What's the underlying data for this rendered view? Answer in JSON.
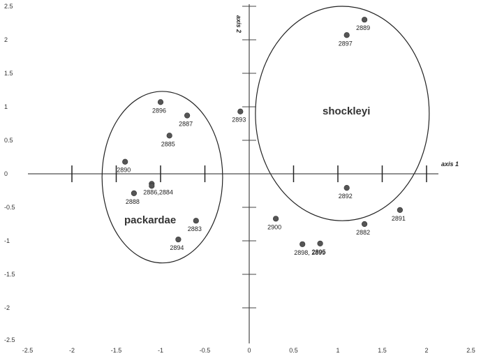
{
  "chart_data": {
    "type": "scatter",
    "x_axis_label": "axis 1",
    "y_axis_label": "axis 2",
    "xlim": [
      -2.5,
      2.5
    ],
    "ylim": [
      -2.5,
      2.5
    ],
    "x_tick_labels": [
      "-2.5",
      "-2",
      "-1.5",
      "-1",
      "-0.5",
      "0",
      "0.5",
      "1",
      "1.5",
      "2",
      "2.5"
    ],
    "y_tick_labels": [
      "2.5",
      "2",
      "1.5",
      "1",
      "0.5",
      "0",
      "-0.5",
      "-1",
      "-1.5",
      "-2",
      "-2.5"
    ],
    "grid": false,
    "point_color": "#555555",
    "points": [
      {
        "label": "2889",
        "x": 1.3,
        "y": 2.3
      },
      {
        "label": "2897",
        "x": 1.1,
        "y": 2.07
      },
      {
        "label": "2893",
        "x": -0.1,
        "y": 0.93
      },
      {
        "label": "2896",
        "x": -1.0,
        "y": 1.07
      },
      {
        "label": "2887",
        "x": -0.7,
        "y": 0.87
      },
      {
        "label": "2885",
        "x": -0.9,
        "y": 0.57
      },
      {
        "label": "2890",
        "x": -1.4,
        "y": 0.18
      },
      {
        "label": "2886,2884",
        "x": -1.1,
        "y": -0.15
      },
      {
        "label": "",
        "x": -1.1,
        "y": -0.18
      },
      {
        "label": "2888",
        "x": -1.3,
        "y": -0.29
      },
      {
        "label": "2883",
        "x": -0.6,
        "y": -0.7
      },
      {
        "label": "2894",
        "x": -0.8,
        "y": -0.98
      },
      {
        "label": "2892",
        "x": 1.1,
        "y": -0.21
      },
      {
        "label": "2891",
        "x": 1.7,
        "y": -0.54
      },
      {
        "label": "2882",
        "x": 1.3,
        "y": -0.75
      },
      {
        "label": "2900",
        "x": 0.3,
        "y": -0.67
      },
      {
        "label": "2898, 2899",
        "x": 0.6,
        "y": -1.05
      },
      {
        "label": "2895",
        "x": 0.8,
        "y": -1.04
      }
    ],
    "groups": [
      {
        "name": "packardae",
        "center": [
          -0.98,
          -0.05
        ],
        "radius": [
          0.68,
          1.28
        ]
      },
      {
        "name": "shockleyi",
        "center": [
          1.05,
          0.9
        ],
        "radius": [
          0.98,
          1.6
        ]
      }
    ]
  }
}
